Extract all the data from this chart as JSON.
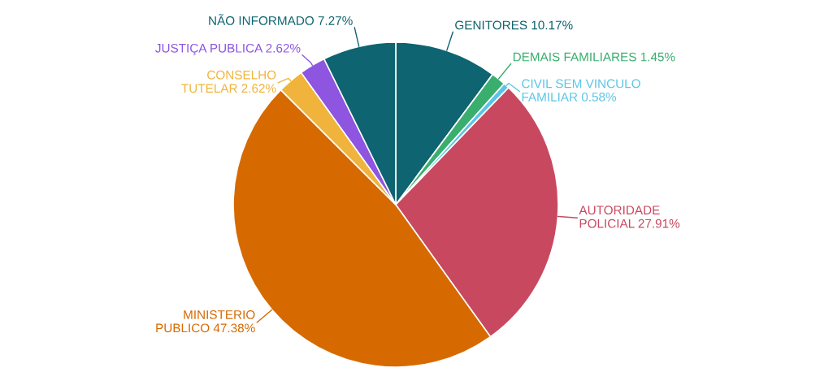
{
  "chart_data": {
    "type": "pie",
    "categories": [
      "GENITORES",
      "DEMAIS FAMILIARES",
      "CIVIL SEM VINCULO\nFAMILIAR",
      "AUTORIDADE\nPOLICIAL",
      "MINISTERIO\nPUBLICO",
      "CONSELHO\nTUTELAR",
      "JUSTIÇA PUBLICA",
      "NÃO INFORMADO"
    ],
    "values": [
      10.17,
      1.45,
      0.58,
      27.91,
      47.38,
      2.62,
      2.62,
      7.27
    ],
    "value_labels": [
      "10.17%",
      "1.45%",
      "0.58%",
      "27.91%",
      "47.38%",
      "2.62%",
      "2.62%",
      "7.27%"
    ],
    "colors": [
      "#0e6470",
      "#3aae6e",
      "#5bc4e6",
      "#c8495f",
      "#d66a00",
      "#f0b43c",
      "#8d55e0",
      "#0e6470"
    ]
  }
}
